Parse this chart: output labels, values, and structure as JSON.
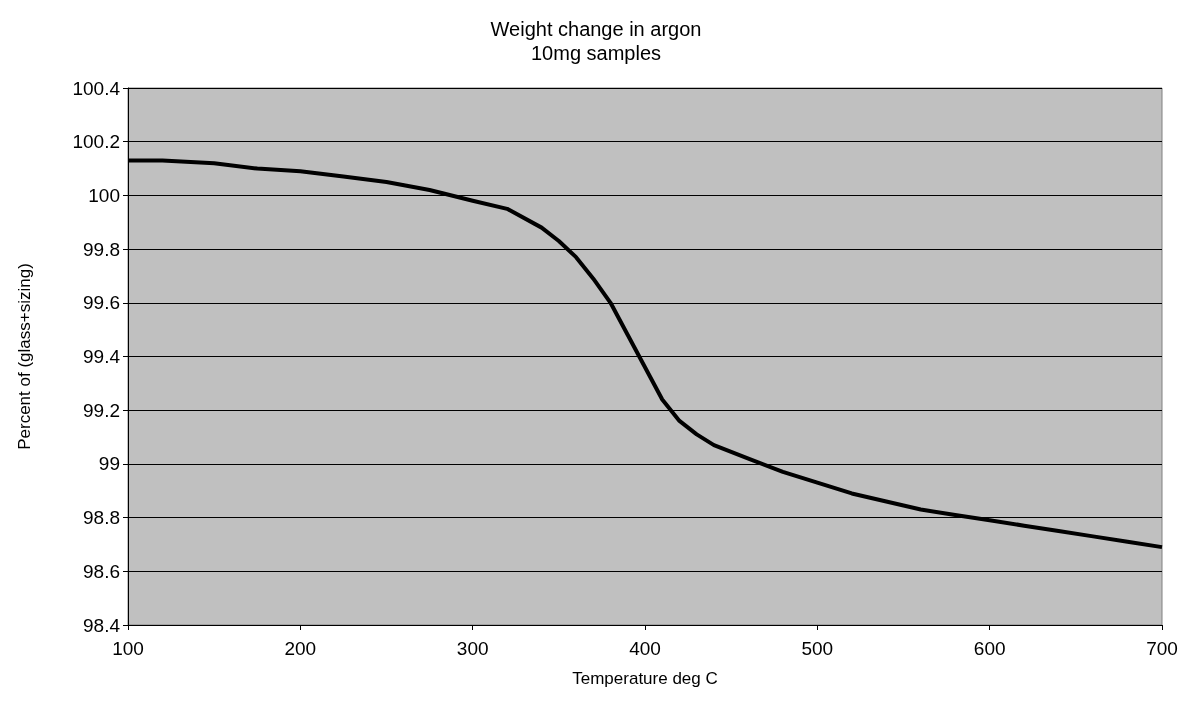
{
  "chart_data": {
    "type": "line",
    "title": "Weight change in argon",
    "subtitle": "10mg samples",
    "xlabel": "Temperature deg C",
    "ylabel": "Percent of (glass+sizing)",
    "x": [
      100,
      120,
      150,
      175,
      200,
      225,
      250,
      275,
      300,
      320,
      340,
      350,
      360,
      370,
      380,
      390,
      400,
      410,
      420,
      430,
      440,
      460,
      480,
      500,
      520,
      540,
      560,
      580,
      600,
      620,
      640,
      660,
      680,
      700
    ],
    "series": [
      {
        "color": "#000000",
        "values": [
          100.13,
          100.13,
          100.12,
          100.1,
          100.09,
          100.07,
          100.05,
          100.02,
          99.98,
          99.95,
          99.88,
          99.83,
          99.77,
          99.69,
          99.6,
          99.48,
          99.36,
          99.24,
          99.16,
          99.11,
          99.07,
          99.02,
          98.97,
          98.93,
          98.89,
          98.86,
          98.83,
          98.81,
          98.79,
          98.77,
          98.75,
          98.73,
          98.71,
          98.69
        ]
      }
    ],
    "xlim": [
      100,
      700
    ],
    "xticks": [
      100,
      200,
      300,
      400,
      500,
      600,
      700
    ],
    "ylim": [
      98.4,
      100.4
    ],
    "yticks": [
      98.4,
      98.6,
      98.8,
      99,
      99.2,
      99.4,
      99.6,
      99.8,
      100,
      100.2,
      100.4
    ],
    "grid": "y",
    "marker": "none",
    "line_style": "solid"
  }
}
